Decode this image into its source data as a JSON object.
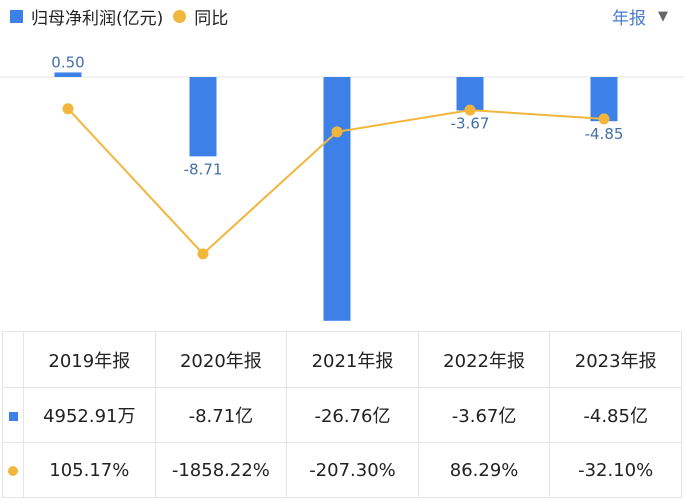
{
  "legend": {
    "bar_label": "归母净利润(亿元)",
    "line_label": "同比"
  },
  "period_selector": "年报",
  "chart_data": {
    "type": "bar",
    "categories": [
      "2019年报",
      "2020年报",
      "2021年报",
      "2022年报",
      "2023年报"
    ],
    "series": [
      {
        "name": "归母净利润(亿元)",
        "type": "bar",
        "values": [
          0.5,
          -8.71,
          -26.76,
          -3.67,
          -4.85
        ],
        "labels": [
          "0.50",
          "-8.71",
          "-26.76",
          "-3.67",
          "-4.85"
        ],
        "color": "#3d80e8"
      },
      {
        "name": "同比",
        "type": "line",
        "values": [
          105.17,
          -1858.22,
          -207.3,
          86.29,
          -32.1
        ],
        "unit": "%",
        "color": "#f2b63c"
      }
    ],
    "grid": false
  },
  "table": {
    "headers": [
      "",
      "2019年报",
      "2020年报",
      "2021年报",
      "2022年报",
      "2023年报"
    ],
    "rows": [
      {
        "marker": "bar",
        "values": [
          "4952.91万",
          "-8.71亿",
          "-26.76亿",
          "-3.67亿",
          "-4.85亿"
        ]
      },
      {
        "marker": "line",
        "values": [
          "105.17%",
          "-1858.22%",
          "-207.30%",
          "86.29%",
          "-32.10%"
        ]
      }
    ]
  },
  "colors": {
    "bar": "#3d80e8",
    "line": "#f2b63c",
    "positive": "#d05050",
    "negative": "#2f9e5a",
    "period_text": "#4a7bd0"
  }
}
